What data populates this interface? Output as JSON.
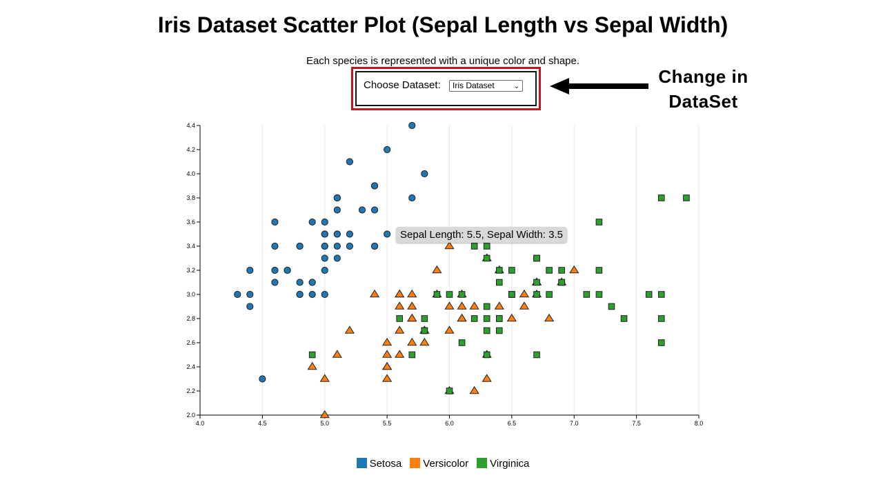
{
  "page": {
    "title": "Iris Dataset Scatter Plot (Sepal Length vs Sepal Width)",
    "subtitle": "Each species is represented with a unique color and shape."
  },
  "controls": {
    "dataset_label": "Choose Dataset:",
    "dataset_selected": "Iris Dataset",
    "highlight_color": "#c0151b"
  },
  "annotation": {
    "text_line1": "Change in",
    "text_line2": "DataSet",
    "arrow_icon": "left-arrow-icon"
  },
  "tooltip": {
    "text": "Sepal Length: 5.5, Sepal Width: 3.5"
  },
  "legend": [
    {
      "label": "Setosa",
      "color": "#1f77b4"
    },
    {
      "label": "Versicolor",
      "color": "#ff7f0e"
    },
    {
      "label": "Virginica",
      "color": "#2ca02c"
    }
  ],
  "chart_data": {
    "type": "scatter",
    "title": "Iris Dataset Scatter Plot (Sepal Length vs Sepal Width)",
    "xlabel": "",
    "ylabel": "",
    "xlim": [
      4.0,
      8.0
    ],
    "ylim": [
      2.0,
      4.4
    ],
    "xticks": [
      "4.0",
      "4.5",
      "5.0",
      "5.5",
      "6.0",
      "6.5",
      "7.0",
      "7.5",
      "8.0"
    ],
    "yticks": [
      "2.0",
      "2.2",
      "2.4",
      "2.6",
      "2.8",
      "3.0",
      "3.2",
      "3.4",
      "3.6",
      "3.8",
      "4.0",
      "4.2",
      "4.4"
    ],
    "vertical_grid": true,
    "legend_position": "bottom",
    "series": [
      {
        "name": "Setosa",
        "shape": "circle",
        "color": "#1f77b4",
        "points": [
          [
            5.1,
            3.5
          ],
          [
            4.9,
            3.0
          ],
          [
            4.7,
            3.2
          ],
          [
            4.6,
            3.1
          ],
          [
            5.0,
            3.6
          ],
          [
            5.4,
            3.9
          ],
          [
            4.6,
            3.4
          ],
          [
            5.0,
            3.4
          ],
          [
            4.4,
            2.9
          ],
          [
            4.9,
            3.1
          ],
          [
            5.4,
            3.7
          ],
          [
            4.8,
            3.4
          ],
          [
            4.8,
            3.0
          ],
          [
            4.3,
            3.0
          ],
          [
            5.8,
            4.0
          ],
          [
            5.7,
            4.4
          ],
          [
            5.4,
            3.9
          ],
          [
            5.1,
            3.5
          ],
          [
            5.7,
            3.8
          ],
          [
            5.1,
            3.8
          ],
          [
            5.4,
            3.4
          ],
          [
            5.1,
            3.7
          ],
          [
            4.6,
            3.6
          ],
          [
            5.1,
            3.3
          ],
          [
            4.8,
            3.4
          ],
          [
            5.0,
            3.0
          ],
          [
            5.0,
            3.4
          ],
          [
            5.2,
            3.5
          ],
          [
            5.2,
            3.4
          ],
          [
            4.7,
            3.2
          ],
          [
            4.8,
            3.1
          ],
          [
            5.4,
            3.4
          ],
          [
            5.2,
            4.1
          ],
          [
            5.5,
            4.2
          ],
          [
            4.9,
            3.1
          ],
          [
            5.0,
            3.2
          ],
          [
            5.5,
            3.5
          ],
          [
            4.9,
            3.6
          ],
          [
            4.4,
            3.0
          ],
          [
            5.1,
            3.4
          ],
          [
            5.0,
            3.5
          ],
          [
            4.5,
            2.3
          ],
          [
            4.4,
            3.2
          ],
          [
            5.0,
            3.5
          ],
          [
            5.1,
            3.8
          ],
          [
            4.8,
            3.0
          ],
          [
            5.1,
            3.8
          ],
          [
            4.6,
            3.2
          ],
          [
            5.3,
            3.7
          ],
          [
            5.0,
            3.3
          ]
        ]
      },
      {
        "name": "Versicolor",
        "shape": "triangle",
        "color": "#ff7f0e",
        "points": [
          [
            7.0,
            3.2
          ],
          [
            6.4,
            3.2
          ],
          [
            6.9,
            3.1
          ],
          [
            5.5,
            2.3
          ],
          [
            6.5,
            2.8
          ],
          [
            5.7,
            2.8
          ],
          [
            6.3,
            3.3
          ],
          [
            4.9,
            2.4
          ],
          [
            6.6,
            2.9
          ],
          [
            5.2,
            2.7
          ],
          [
            5.0,
            2.0
          ],
          [
            5.9,
            3.0
          ],
          [
            6.0,
            2.2
          ],
          [
            6.1,
            2.9
          ],
          [
            5.6,
            2.9
          ],
          [
            6.7,
            3.1
          ],
          [
            5.6,
            3.0
          ],
          [
            5.8,
            2.7
          ],
          [
            6.2,
            2.2
          ],
          [
            5.6,
            2.5
          ],
          [
            5.9,
            3.2
          ],
          [
            6.1,
            2.8
          ],
          [
            6.3,
            2.5
          ],
          [
            6.1,
            2.8
          ],
          [
            6.4,
            2.9
          ],
          [
            6.6,
            3.0
          ],
          [
            6.8,
            2.8
          ],
          [
            6.7,
            3.0
          ],
          [
            6.0,
            2.9
          ],
          [
            5.7,
            2.6
          ],
          [
            5.5,
            2.4
          ],
          [
            5.5,
            2.4
          ],
          [
            5.8,
            2.7
          ],
          [
            6.0,
            2.7
          ],
          [
            5.4,
            3.0
          ],
          [
            6.0,
            3.4
          ],
          [
            6.7,
            3.1
          ],
          [
            6.3,
            2.3
          ],
          [
            5.6,
            3.0
          ],
          [
            5.5,
            2.5
          ],
          [
            5.5,
            2.6
          ],
          [
            6.1,
            3.0
          ],
          [
            5.8,
            2.6
          ],
          [
            5.0,
            2.3
          ],
          [
            5.6,
            2.7
          ],
          [
            5.7,
            3.0
          ],
          [
            5.7,
            2.9
          ],
          [
            6.2,
            2.9
          ],
          [
            5.1,
            2.5
          ],
          [
            5.7,
            2.8
          ]
        ]
      },
      {
        "name": "Virginica",
        "shape": "square",
        "color": "#2ca02c",
        "points": [
          [
            6.3,
            3.3
          ],
          [
            5.8,
            2.7
          ],
          [
            7.1,
            3.0
          ],
          [
            6.3,
            2.9
          ],
          [
            6.5,
            3.0
          ],
          [
            7.6,
            3.0
          ],
          [
            4.9,
            2.5
          ],
          [
            7.3,
            2.9
          ],
          [
            6.7,
            2.5
          ],
          [
            7.2,
            3.6
          ],
          [
            6.5,
            3.2
          ],
          [
            6.4,
            2.7
          ],
          [
            6.8,
            3.0
          ],
          [
            5.7,
            2.5
          ],
          [
            5.8,
            2.8
          ],
          [
            6.4,
            3.2
          ],
          [
            6.5,
            3.0
          ],
          [
            7.7,
            3.8
          ],
          [
            7.7,
            2.6
          ],
          [
            6.0,
            2.2
          ],
          [
            6.9,
            3.2
          ],
          [
            5.6,
            2.8
          ],
          [
            7.7,
            2.8
          ],
          [
            6.3,
            2.7
          ],
          [
            6.7,
            3.3
          ],
          [
            7.2,
            3.2
          ],
          [
            6.2,
            2.8
          ],
          [
            6.1,
            3.0
          ],
          [
            6.4,
            2.8
          ],
          [
            7.2,
            3.0
          ],
          [
            7.4,
            2.8
          ],
          [
            7.9,
            3.8
          ],
          [
            6.4,
            2.8
          ],
          [
            6.3,
            2.8
          ],
          [
            6.1,
            2.6
          ],
          [
            7.7,
            3.0
          ],
          [
            6.3,
            3.4
          ],
          [
            6.4,
            3.1
          ],
          [
            6.0,
            3.0
          ],
          [
            6.9,
            3.1
          ],
          [
            6.7,
            3.1
          ],
          [
            6.9,
            3.1
          ],
          [
            5.8,
            2.7
          ],
          [
            6.8,
            3.2
          ],
          [
            6.7,
            3.3
          ],
          [
            6.7,
            3.0
          ],
          [
            6.3,
            2.5
          ],
          [
            6.5,
            3.0
          ],
          [
            6.2,
            3.4
          ],
          [
            5.9,
            3.0
          ]
        ]
      }
    ]
  }
}
